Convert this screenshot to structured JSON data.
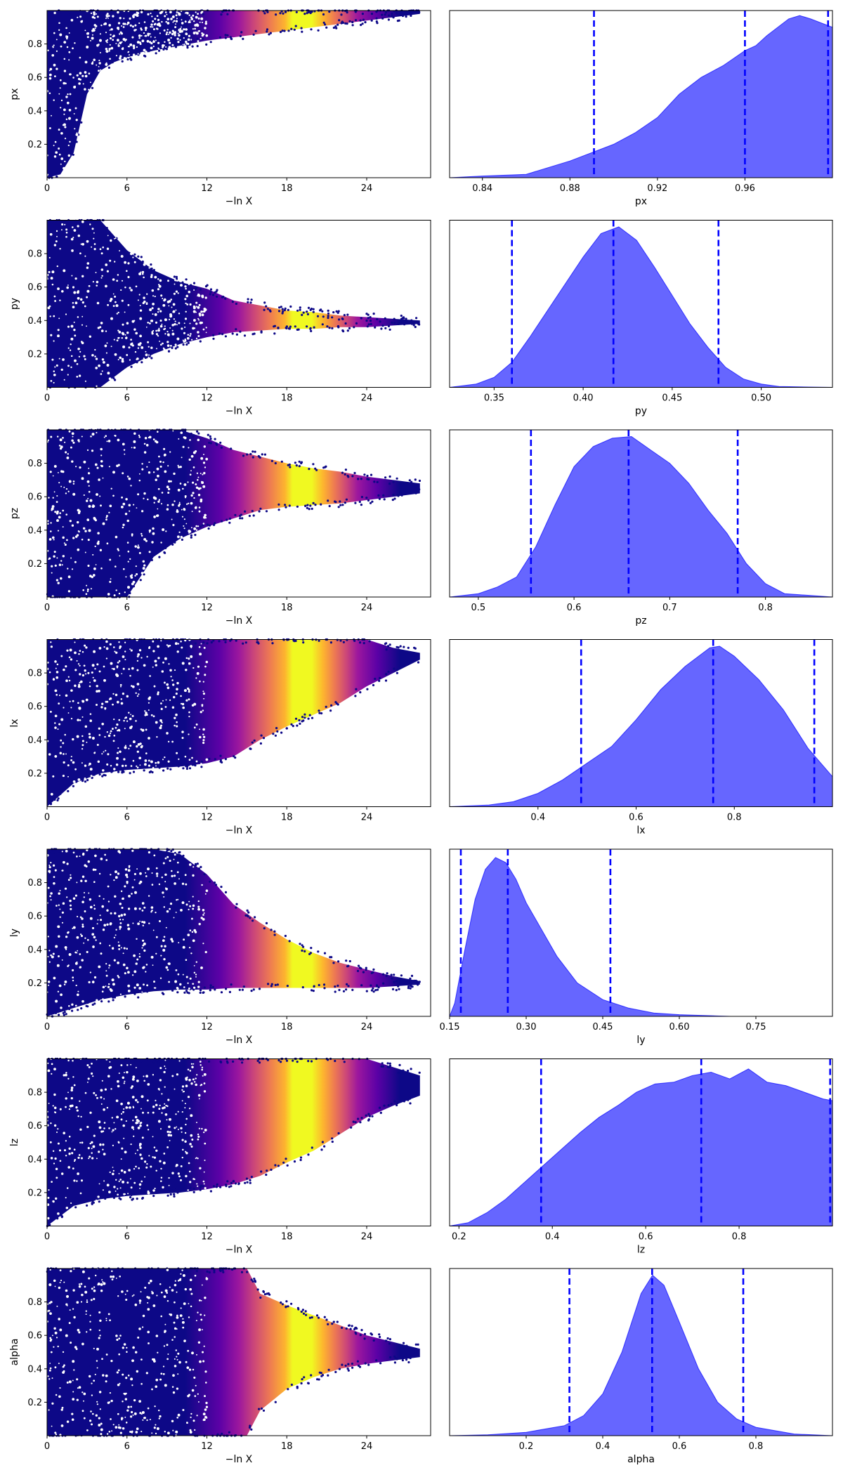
{
  "chart_data": [
    {
      "panel": "trace",
      "type": "scatter",
      "param": "px",
      "xlabel": "−ln X",
      "ylabel": "px",
      "xlim": [
        0,
        28.8
      ],
      "ylim": [
        0,
        1
      ],
      "xticks": [
        "0",
        "6",
        "12",
        "18",
        "24"
      ],
      "yticks": [
        "0.2",
        "0.4",
        "0.6",
        "0.8"
      ],
      "colormap": "plasma",
      "envelope_x": [
        0,
        1,
        2,
        3,
        4,
        5,
        6,
        8,
        10,
        12,
        14,
        16,
        18,
        20,
        22,
        24,
        26,
        28
      ],
      "envelope_lower": [
        0.0,
        0.02,
        0.15,
        0.5,
        0.64,
        0.69,
        0.72,
        0.76,
        0.79,
        0.82,
        0.84,
        0.86,
        0.88,
        0.9,
        0.92,
        0.94,
        0.96,
        0.98
      ],
      "envelope_upper": [
        1,
        1,
        1,
        1,
        1,
        1,
        1,
        1,
        1,
        1,
        1,
        1,
        1,
        1,
        1,
        1,
        1,
        1
      ]
    },
    {
      "panel": "kde",
      "type": "area",
      "param": "px",
      "xlabel": "px",
      "xlim": [
        0.825,
        1.0
      ],
      "xticks": [
        "0.84",
        "0.88",
        "0.92",
        "0.96"
      ],
      "color": "#0000ff",
      "quantiles": [
        0.891,
        0.96,
        0.998
      ],
      "x": [
        0.825,
        0.84,
        0.86,
        0.87,
        0.88,
        0.89,
        0.9,
        0.91,
        0.92,
        0.93,
        0.94,
        0.95,
        0.96,
        0.965,
        0.97,
        0.98,
        0.985,
        0.99,
        1.0
      ],
      "y": [
        0.0,
        0.01,
        0.02,
        0.06,
        0.1,
        0.15,
        0.2,
        0.27,
        0.36,
        0.5,
        0.6,
        0.67,
        0.76,
        0.79,
        0.85,
        0.95,
        0.97,
        0.95,
        0.9
      ]
    },
    {
      "panel": "trace",
      "type": "scatter",
      "param": "py",
      "xlabel": "−ln X",
      "ylabel": "py",
      "xlim": [
        0,
        28.8
      ],
      "ylim": [
        0,
        1
      ],
      "xticks": [
        "0",
        "6",
        "12",
        "18",
        "24"
      ],
      "yticks": [
        "0.2",
        "0.4",
        "0.6",
        "0.8"
      ],
      "colormap": "plasma",
      "envelope_x": [
        0,
        2,
        4,
        6,
        8,
        10,
        12,
        14,
        16,
        18,
        20,
        22,
        24,
        26,
        28
      ],
      "envelope_lower": [
        0.0,
        0.0,
        0.0,
        0.12,
        0.2,
        0.26,
        0.3,
        0.33,
        0.34,
        0.35,
        0.35,
        0.36,
        0.36,
        0.37,
        0.38
      ],
      "envelope_upper": [
        1,
        1,
        1,
        0.82,
        0.7,
        0.63,
        0.59,
        0.52,
        0.49,
        0.46,
        0.45,
        0.43,
        0.42,
        0.41,
        0.4
      ]
    },
    {
      "panel": "kde",
      "type": "area",
      "param": "py",
      "xlabel": "py",
      "xlim": [
        0.325,
        0.54
      ],
      "xticks": [
        "0.35",
        "0.40",
        "0.45",
        "0.50"
      ],
      "color": "#0000ff",
      "quantiles": [
        0.36,
        0.417,
        0.476
      ],
      "x": [
        0.325,
        0.34,
        0.35,
        0.36,
        0.37,
        0.38,
        0.39,
        0.4,
        0.41,
        0.42,
        0.43,
        0.44,
        0.45,
        0.46,
        0.47,
        0.48,
        0.49,
        0.5,
        0.51,
        0.54
      ],
      "y": [
        0.0,
        0.02,
        0.06,
        0.15,
        0.3,
        0.46,
        0.62,
        0.78,
        0.92,
        0.96,
        0.88,
        0.72,
        0.55,
        0.38,
        0.24,
        0.12,
        0.05,
        0.02,
        0.005,
        0.0
      ]
    },
    {
      "panel": "trace",
      "type": "scatter",
      "param": "pz",
      "xlabel": "−ln X",
      "ylabel": "pz",
      "xlim": [
        0,
        28.8
      ],
      "ylim": [
        0,
        1
      ],
      "xticks": [
        "0",
        "6",
        "12",
        "18",
        "24"
      ],
      "yticks": [
        "0.2",
        "0.4",
        "0.6",
        "0.8"
      ],
      "colormap": "plasma",
      "envelope_x": [
        0,
        2,
        4,
        6,
        8,
        10,
        12,
        14,
        16,
        18,
        20,
        22,
        24,
        26,
        28
      ],
      "envelope_lower": [
        0.0,
        0.0,
        0.0,
        0.0,
        0.24,
        0.35,
        0.42,
        0.47,
        0.52,
        0.54,
        0.55,
        0.56,
        0.58,
        0.6,
        0.62
      ],
      "envelope_upper": [
        1,
        1,
        1,
        1,
        1,
        1,
        0.95,
        0.88,
        0.84,
        0.8,
        0.77,
        0.75,
        0.72,
        0.7,
        0.68
      ]
    },
    {
      "panel": "kde",
      "type": "area",
      "param": "pz",
      "xlabel": "pz",
      "xlim": [
        0.47,
        0.87
      ],
      "xticks": [
        "0.5",
        "0.6",
        "0.7",
        "0.8"
      ],
      "color": "#0000ff",
      "quantiles": [
        0.555,
        0.657,
        0.771
      ],
      "x": [
        0.47,
        0.5,
        0.52,
        0.54,
        0.56,
        0.58,
        0.6,
        0.62,
        0.64,
        0.66,
        0.68,
        0.7,
        0.72,
        0.74,
        0.76,
        0.78,
        0.8,
        0.82,
        0.87
      ],
      "y": [
        0.0,
        0.02,
        0.06,
        0.12,
        0.3,
        0.55,
        0.78,
        0.9,
        0.95,
        0.96,
        0.88,
        0.8,
        0.68,
        0.52,
        0.38,
        0.2,
        0.08,
        0.02,
        0.0
      ]
    },
    {
      "panel": "trace",
      "type": "scatter",
      "param": "lx",
      "xlabel": "−ln X",
      "ylabel": "lx",
      "xlim": [
        0,
        28.8
      ],
      "ylim": [
        0,
        1
      ],
      "xticks": [
        "0",
        "6",
        "12",
        "18",
        "24"
      ],
      "yticks": [
        "0.2",
        "0.4",
        "0.6",
        "0.8"
      ],
      "colormap": "plasma",
      "envelope_x": [
        0,
        2,
        4,
        6,
        8,
        10,
        12,
        14,
        16,
        18,
        20,
        22,
        24,
        26,
        28
      ],
      "envelope_lower": [
        0.0,
        0.14,
        0.2,
        0.22,
        0.23,
        0.24,
        0.26,
        0.3,
        0.4,
        0.48,
        0.55,
        0.62,
        0.72,
        0.8,
        0.88
      ],
      "envelope_upper": [
        1,
        1,
        1,
        1,
        1,
        1,
        1,
        1,
        1,
        1,
        1,
        1,
        1,
        0.95,
        0.92
      ]
    },
    {
      "panel": "kde",
      "type": "area",
      "param": "lx",
      "xlabel": "lx",
      "xlim": [
        0.22,
        1.0
      ],
      "xticks": [
        "0.4",
        "0.6",
        "0.8"
      ],
      "color": "#0000ff",
      "quantiles": [
        0.488,
        0.757,
        0.963
      ],
      "x": [
        0.22,
        0.3,
        0.35,
        0.4,
        0.45,
        0.5,
        0.55,
        0.6,
        0.65,
        0.7,
        0.75,
        0.77,
        0.8,
        0.85,
        0.9,
        0.95,
        1.0
      ],
      "y": [
        0.0,
        0.01,
        0.03,
        0.08,
        0.16,
        0.26,
        0.36,
        0.52,
        0.7,
        0.84,
        0.95,
        0.96,
        0.9,
        0.76,
        0.58,
        0.35,
        0.18
      ]
    },
    {
      "panel": "trace",
      "type": "scatter",
      "param": "ly",
      "xlabel": "−ln X",
      "ylabel": "ly",
      "xlim": [
        0,
        28.8
      ],
      "ylim": [
        0,
        1
      ],
      "xticks": [
        "0",
        "6",
        "12",
        "18",
        "24"
      ],
      "yticks": [
        "0.2",
        "0.4",
        "0.6",
        "0.8"
      ],
      "colormap": "plasma",
      "envelope_x": [
        0,
        2,
        4,
        6,
        8,
        10,
        12,
        14,
        16,
        18,
        20,
        22,
        24,
        26,
        28
      ],
      "envelope_lower": [
        0.0,
        0.05,
        0.1,
        0.13,
        0.15,
        0.16,
        0.16,
        0.17,
        0.17,
        0.17,
        0.17,
        0.17,
        0.17,
        0.18,
        0.19
      ],
      "envelope_upper": [
        1,
        1,
        1,
        1,
        1,
        0.97,
        0.85,
        0.67,
        0.56,
        0.46,
        0.38,
        0.32,
        0.28,
        0.24,
        0.21
      ]
    },
    {
      "panel": "kde",
      "type": "area",
      "param": "ly",
      "xlabel": "ly",
      "xlim": [
        0.15,
        0.9
      ],
      "xticks": [
        "0.15",
        "0.30",
        "0.45",
        "0.60",
        "0.75"
      ],
      "color": "#0000ff",
      "quantiles": [
        0.172,
        0.264,
        0.465
      ],
      "x": [
        0.15,
        0.16,
        0.18,
        0.2,
        0.22,
        0.24,
        0.26,
        0.28,
        0.3,
        0.33,
        0.36,
        0.4,
        0.45,
        0.5,
        0.55,
        0.6,
        0.7,
        0.9
      ],
      "y": [
        0.0,
        0.08,
        0.4,
        0.7,
        0.88,
        0.95,
        0.92,
        0.82,
        0.68,
        0.52,
        0.36,
        0.2,
        0.1,
        0.05,
        0.02,
        0.01,
        0.0,
        0.0
      ]
    },
    {
      "panel": "trace",
      "type": "scatter",
      "param": "lz",
      "xlabel": "−ln X",
      "ylabel": "lz",
      "xlim": [
        0,
        28.8
      ],
      "ylim": [
        0,
        1
      ],
      "xticks": [
        "0",
        "6",
        "12",
        "18",
        "24"
      ],
      "yticks": [
        "0.2",
        "0.4",
        "0.6",
        "0.8"
      ],
      "colormap": "plasma",
      "envelope_x": [
        0,
        2,
        4,
        6,
        8,
        10,
        12,
        14,
        16,
        18,
        20,
        22,
        24,
        26,
        28
      ],
      "envelope_lower": [
        0.0,
        0.12,
        0.16,
        0.18,
        0.19,
        0.2,
        0.22,
        0.25,
        0.3,
        0.38,
        0.45,
        0.55,
        0.65,
        0.72,
        0.78
      ],
      "envelope_upper": [
        1,
        1,
        1,
        1,
        1,
        1,
        1,
        1,
        1,
        1,
        1,
        1,
        1,
        0.95,
        0.9
      ]
    },
    {
      "panel": "kde",
      "type": "area",
      "param": "lz",
      "xlabel": "lz",
      "xlim": [
        0.18,
        1.0
      ],
      "xticks": [
        "0.2",
        "0.4",
        "0.6",
        "0.8"
      ],
      "color": "#0000ff",
      "quantiles": [
        0.376,
        0.719,
        0.995
      ],
      "x": [
        0.18,
        0.22,
        0.26,
        0.3,
        0.34,
        0.38,
        0.42,
        0.46,
        0.5,
        0.54,
        0.58,
        0.62,
        0.66,
        0.7,
        0.74,
        0.78,
        0.82,
        0.86,
        0.9,
        0.94,
        0.98,
        1.0
      ],
      "y": [
        0.0,
        0.02,
        0.08,
        0.16,
        0.26,
        0.36,
        0.46,
        0.56,
        0.65,
        0.72,
        0.8,
        0.85,
        0.86,
        0.9,
        0.92,
        0.88,
        0.94,
        0.86,
        0.84,
        0.8,
        0.76,
        0.75
      ]
    },
    {
      "panel": "trace",
      "type": "scatter",
      "param": "alpha",
      "xlabel": "−ln X",
      "ylabel": "alpha",
      "xlim": [
        0,
        28.8
      ],
      "ylim": [
        0,
        1
      ],
      "xticks": [
        "0",
        "6",
        "12",
        "18",
        "24"
      ],
      "yticks": [
        "0.2",
        "0.4",
        "0.6",
        "0.8"
      ],
      "colormap": "plasma",
      "envelope_x": [
        0,
        2,
        4,
        6,
        8,
        10,
        12,
        14,
        15,
        16,
        18,
        20,
        22,
        24,
        26,
        28
      ],
      "envelope_lower": [
        0.0,
        0.0,
        0.0,
        0.0,
        0.0,
        0.0,
        0.0,
        0.0,
        0.0,
        0.15,
        0.28,
        0.35,
        0.4,
        0.43,
        0.45,
        0.47
      ],
      "envelope_upper": [
        1,
        1,
        1,
        1,
        1,
        1,
        1,
        1,
        1,
        0.85,
        0.78,
        0.72,
        0.66,
        0.6,
        0.56,
        0.52
      ]
    },
    {
      "panel": "kde",
      "type": "area",
      "param": "alpha",
      "xlabel": "alpha",
      "xlim": [
        0.0,
        1.0
      ],
      "xticks": [
        "0.2",
        "0.4",
        "0.6",
        "0.8"
      ],
      "color": "#0000ff",
      "quantiles": [
        0.313,
        0.529,
        0.767
      ],
      "x": [
        0.0,
        0.1,
        0.2,
        0.3,
        0.35,
        0.4,
        0.45,
        0.5,
        0.53,
        0.56,
        0.6,
        0.65,
        0.7,
        0.75,
        0.8,
        0.9,
        1.0
      ],
      "y": [
        0.0,
        0.005,
        0.02,
        0.06,
        0.12,
        0.25,
        0.5,
        0.85,
        0.96,
        0.9,
        0.68,
        0.4,
        0.2,
        0.1,
        0.05,
        0.01,
        0.0
      ]
    }
  ]
}
